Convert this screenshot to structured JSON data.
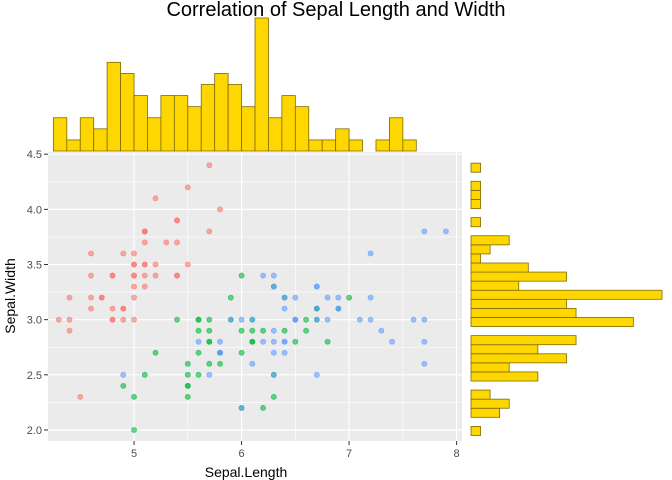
{
  "chart_data": {
    "type": "scatter",
    "title": "Correlation of Sepal Length and Width",
    "xlabel": "Sepal.Length",
    "ylabel": "Sepal.Width",
    "xlim": [
      4.2,
      8.05
    ],
    "ylim": [
      1.9,
      4.52
    ],
    "x_ticks": [
      "5",
      "6",
      "7",
      "8"
    ],
    "y_ticks": [
      "2.0",
      "2.5",
      "3.0",
      "3.5",
      "4.0",
      "4.5"
    ],
    "grid": true,
    "legend": "none",
    "colors": {
      "panel_bg": "#ebebeb",
      "grid": "#ffffff",
      "hist_fill": "#ffd700",
      "hist_border": "#7f6a00",
      "setosa": "#f8766d",
      "versicolor": "#00ba38",
      "virginica": "#619cff"
    },
    "series": [
      {
        "color": "#f8766d",
        "points": [
          [
            5.1,
            3.5
          ],
          [
            4.9,
            3.0
          ],
          [
            4.7,
            3.2
          ],
          [
            4.6,
            3.1
          ],
          [
            5.0,
            3.6
          ],
          [
            5.4,
            3.9
          ],
          [
            4.6,
            3.4
          ],
          [
            5.0,
            3.4
          ],
          [
            4.4,
            2.9
          ],
          [
            4.9,
            3.1
          ],
          [
            5.4,
            3.7
          ],
          [
            4.8,
            3.4
          ],
          [
            4.8,
            3.0
          ],
          [
            4.3,
            3.0
          ],
          [
            5.8,
            4.0
          ],
          [
            5.7,
            4.4
          ],
          [
            5.4,
            3.9
          ],
          [
            5.1,
            3.5
          ],
          [
            5.7,
            3.8
          ],
          [
            5.1,
            3.8
          ],
          [
            5.4,
            3.4
          ],
          [
            5.1,
            3.7
          ],
          [
            4.6,
            3.6
          ],
          [
            5.1,
            3.3
          ],
          [
            4.8,
            3.4
          ],
          [
            5.0,
            3.0
          ],
          [
            5.0,
            3.4
          ],
          [
            5.2,
            3.5
          ],
          [
            5.2,
            3.4
          ],
          [
            4.7,
            3.2
          ],
          [
            4.8,
            3.1
          ],
          [
            5.4,
            3.4
          ],
          [
            5.2,
            4.1
          ],
          [
            5.5,
            4.2
          ],
          [
            4.9,
            3.1
          ],
          [
            5.0,
            3.2
          ],
          [
            5.5,
            3.5
          ],
          [
            4.9,
            3.6
          ],
          [
            4.4,
            3.0
          ],
          [
            5.1,
            3.4
          ],
          [
            5.0,
            3.5
          ],
          [
            4.5,
            2.3
          ],
          [
            4.4,
            3.2
          ],
          [
            5.0,
            3.5
          ],
          [
            5.1,
            3.8
          ],
          [
            4.8,
            3.0
          ],
          [
            5.1,
            3.8
          ],
          [
            4.6,
            3.2
          ],
          [
            5.3,
            3.7
          ],
          [
            5.0,
            3.3
          ]
        ]
      },
      {
        "color": "#00ba38",
        "points": [
          [
            5.5,
            2.3
          ],
          [
            6.5,
            2.8
          ],
          [
            5.7,
            2.8
          ],
          [
            6.3,
            3.3
          ],
          [
            4.9,
            2.4
          ],
          [
            6.6,
            2.9
          ],
          [
            5.2,
            2.7
          ],
          [
            5.0,
            2.0
          ],
          [
            5.9,
            3.0
          ],
          [
            6.0,
            2.2
          ],
          [
            6.1,
            2.9
          ],
          [
            5.6,
            2.9
          ],
          [
            6.7,
            3.1
          ],
          [
            5.6,
            3.0
          ],
          [
            5.8,
            2.7
          ],
          [
            6.2,
            2.2
          ],
          [
            5.6,
            2.5
          ],
          [
            5.9,
            3.2
          ],
          [
            6.1,
            2.8
          ],
          [
            6.3,
            2.5
          ],
          [
            6.1,
            2.8
          ],
          [
            6.4,
            2.9
          ],
          [
            6.6,
            3.0
          ],
          [
            6.8,
            2.8
          ],
          [
            6.7,
            3.0
          ],
          [
            6.0,
            2.9
          ],
          [
            5.7,
            2.6
          ],
          [
            5.5,
            2.4
          ],
          [
            5.5,
            2.4
          ],
          [
            5.8,
            2.7
          ],
          [
            6.0,
            2.7
          ],
          [
            5.4,
            3.0
          ],
          [
            6.0,
            3.4
          ],
          [
            6.7,
            3.1
          ],
          [
            6.3,
            2.3
          ],
          [
            5.6,
            3.0
          ],
          [
            5.5,
            2.5
          ],
          [
            5.5,
            2.6
          ],
          [
            6.1,
            3.0
          ],
          [
            5.8,
            2.6
          ],
          [
            5.0,
            2.3
          ],
          [
            5.6,
            2.7
          ],
          [
            5.7,
            3.0
          ],
          [
            5.7,
            2.9
          ],
          [
            6.2,
            2.9
          ],
          [
            5.1,
            2.5
          ],
          [
            5.7,
            2.8
          ],
          [
            7.0,
            3.2
          ],
          [
            6.4,
            3.2
          ],
          [
            6.9,
            3.1
          ]
        ]
      },
      {
        "color": "#619cff",
        "points": [
          [
            6.3,
            3.3
          ],
          [
            5.8,
            2.7
          ],
          [
            7.1,
            3.0
          ],
          [
            6.3,
            2.9
          ],
          [
            6.5,
            3.0
          ],
          [
            7.6,
            3.0
          ],
          [
            4.9,
            2.5
          ],
          [
            7.3,
            2.9
          ],
          [
            6.7,
            2.5
          ],
          [
            7.2,
            3.6
          ],
          [
            6.5,
            3.2
          ],
          [
            6.4,
            2.7
          ],
          [
            6.8,
            3.0
          ],
          [
            5.7,
            2.5
          ],
          [
            5.8,
            2.8
          ],
          [
            6.4,
            3.2
          ],
          [
            6.5,
            3.0
          ],
          [
            7.7,
            3.8
          ],
          [
            7.7,
            2.6
          ],
          [
            6.0,
            2.2
          ],
          [
            6.9,
            3.2
          ],
          [
            5.6,
            2.8
          ],
          [
            7.7,
            2.8
          ],
          [
            6.3,
            2.7
          ],
          [
            6.7,
            3.3
          ],
          [
            7.2,
            3.2
          ],
          [
            6.2,
            2.8
          ],
          [
            6.1,
            3.0
          ],
          [
            6.4,
            2.8
          ],
          [
            7.2,
            3.0
          ],
          [
            7.4,
            2.8
          ],
          [
            7.9,
            3.8
          ],
          [
            6.4,
            2.8
          ],
          [
            6.3,
            2.8
          ],
          [
            6.1,
            2.6
          ],
          [
            7.7,
            3.0
          ],
          [
            6.3,
            3.4
          ],
          [
            6.4,
            3.1
          ],
          [
            6.0,
            3.0
          ],
          [
            6.9,
            3.1
          ],
          [
            6.7,
            3.1
          ],
          [
            6.9,
            3.1
          ],
          [
            5.8,
            2.7
          ],
          [
            6.8,
            3.2
          ],
          [
            6.7,
            3.3
          ],
          [
            6.7,
            3.0
          ],
          [
            6.3,
            2.5
          ],
          [
            6.5,
            3.0
          ],
          [
            6.2,
            3.4
          ],
          [
            5.9,
            3.0
          ]
        ]
      }
    ],
    "histogram_x": {
      "bin_start": 4.25,
      "bin_width": 0.125,
      "counts": [
        3,
        1,
        3,
        2,
        8,
        7,
        5,
        3,
        5,
        5,
        4,
        6,
        7,
        6,
        4,
        12,
        3,
        5,
        4,
        1,
        1,
        2,
        1,
        0,
        1,
        3,
        1
      ]
    },
    "histogram_y": {
      "bin_start": 1.95,
      "bin_width": 0.0823,
      "counts": [
        1,
        0,
        3,
        4,
        2,
        0,
        7,
        4,
        10,
        7,
        11,
        0,
        17,
        11,
        10,
        20,
        5,
        10,
        6,
        1,
        2,
        4,
        0,
        1,
        0,
        1,
        1,
        1,
        0,
        1
      ]
    }
  }
}
